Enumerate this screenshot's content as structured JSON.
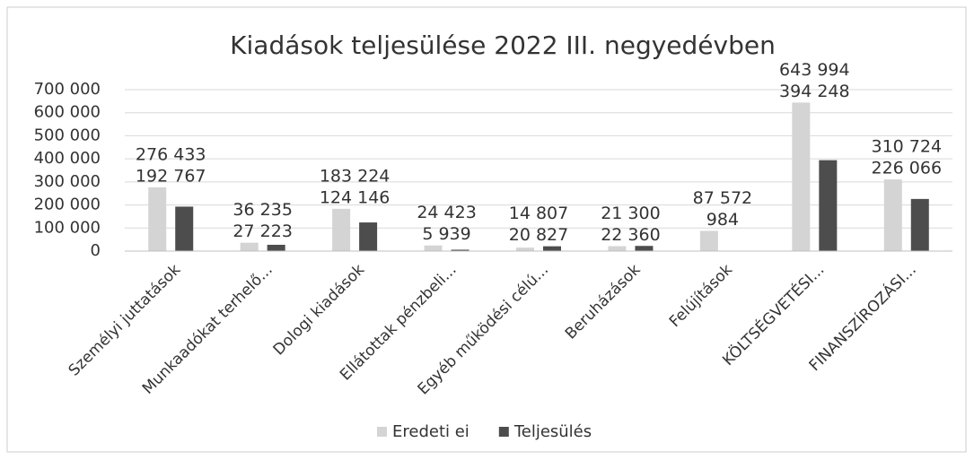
{
  "chart_data": {
    "type": "bar",
    "title": "Kiadások teljesülése 2022 III. negyedévben",
    "categories": [
      "Személyi juttatások",
      "Munkaadókat terhelő...",
      "Dologi kiadások",
      "Ellátottak pénzbeli...",
      "Egyéb működési célú...",
      "Beruházások",
      "Felújítások",
      "KÖLTSÉGVETÉSI...",
      "FINANSZÍROZÁSI..."
    ],
    "series": [
      {
        "name": "Eredeti ei",
        "color": "#d4d4d4",
        "values": [
          276433,
          36235,
          183224,
          24423,
          14807,
          21300,
          87572,
          643994,
          310724
        ],
        "value_labels": [
          "276 433",
          "36 235",
          "183 224",
          "24 423",
          "14 807",
          "21 300",
          "87 572",
          "643 994",
          "310 724"
        ]
      },
      {
        "name": "Teljesülés",
        "color": "#4d4d4d",
        "values": [
          192767,
          27223,
          124146,
          5939,
          20827,
          22360,
          984,
          394248,
          226066
        ],
        "value_labels": [
          "192 767",
          "27 223",
          "124 146",
          "5 939",
          "20 827",
          "22 360",
          "984",
          "394 248",
          "226 066"
        ]
      }
    ],
    "ylim": [
      0,
      700000
    ],
    "yticks": [
      0,
      {
        "value": 100000,
        "label": "100 000"
      },
      {
        "value": 200000,
        "label": "200 000"
      },
      {
        "value": 300000,
        "label": "300 000"
      },
      {
        "value": 400000,
        "label": "400 000"
      },
      {
        "value": 500000,
        "label": "500 000"
      },
      {
        "value": 600000,
        "label": "600 000"
      },
      {
        "value": 700000,
        "label": "700 000"
      }
    ],
    "grid": true,
    "legend": "bottom"
  }
}
